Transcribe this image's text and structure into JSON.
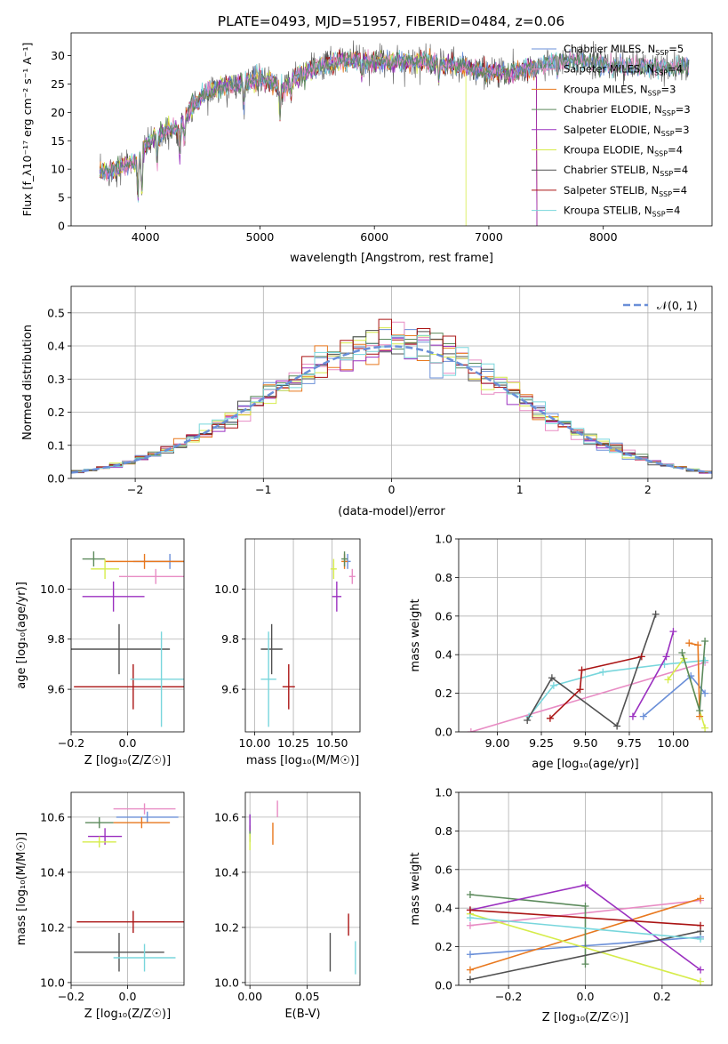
{
  "figure": {
    "title": "PLATE=0493, MJD=51957, FIBERID=0484, z=0.06"
  },
  "colors": {
    "chabrier_miles": "#6a8fd8",
    "salpeter_miles": "#e88cc4",
    "kroupa_miles": "#e8781e",
    "chabrier_elodie": "#5c8a5c",
    "salpeter_elodie": "#9b30c0",
    "kroupa_elodie": "#d6ec4a",
    "chabrier_stelib": "#505050",
    "salpeter_stelib": "#aa1414",
    "kroupa_stelib": "#78d6dc"
  },
  "chart_data": [
    {
      "id": "spectrum",
      "type": "line",
      "xlabel": "wavelength [Angstrom, rest frame]",
      "ylabel": "Flux [f_λ10⁻¹⁷ erg cm⁻² s⁻¹ A⁻¹]",
      "xlim": [
        3350,
        8950
      ],
      "ylim": [
        0,
        34
      ],
      "xticks": [
        "4000",
        "5000",
        "6000",
        "7000",
        "8000"
      ],
      "yticks": [
        "0",
        "5",
        "10",
        "15",
        "20",
        "25",
        "30"
      ],
      "legend_position": "right",
      "legend": [
        {
          "label": "Chabrier MILES, N",
          "sub": "SSP",
          "suffix": "=5",
          "color_key": "chabrier_miles"
        },
        {
          "label": "Salpeter MILES, N",
          "sub": "SSP",
          "suffix": "=4",
          "color_key": "salpeter_miles"
        },
        {
          "label": "Kroupa MILES, N",
          "sub": "SSP",
          "suffix": "=3",
          "color_key": "kroupa_miles"
        },
        {
          "label": "Chabrier ELODIE, N",
          "sub": "SSP",
          "suffix": "=3",
          "color_key": "chabrier_elodie"
        },
        {
          "label": "Salpeter ELODIE, N",
          "sub": "SSP",
          "suffix": "=3",
          "color_key": "salpeter_elodie"
        },
        {
          "label": "Kroupa ELODIE, N",
          "sub": "SSP",
          "suffix": "=4",
          "color_key": "kroupa_elodie"
        },
        {
          "label": "Chabrier STELIB, N",
          "sub": "SSP",
          "suffix": "=4",
          "color_key": "chabrier_stelib"
        },
        {
          "label": "Salpeter STELIB, N",
          "sub": "SSP",
          "suffix": "=4",
          "color_key": "salpeter_stelib"
        },
        {
          "label": "Kroupa STELIB, N",
          "sub": "SSP",
          "suffix": "=4",
          "color_key": "kroupa_stelib"
        }
      ],
      "continuum": [
        [
          3600,
          9
        ],
        [
          3700,
          10
        ],
        [
          3800,
          10.5
        ],
        [
          3900,
          11
        ],
        [
          4000,
          14
        ],
        [
          4100,
          16
        ],
        [
          4200,
          17
        ],
        [
          4300,
          17
        ],
        [
          4400,
          21
        ],
        [
          4500,
          23
        ],
        [
          4600,
          24
        ],
        [
          4700,
          24.5
        ],
        [
          4800,
          25
        ],
        [
          4900,
          25.5
        ],
        [
          5000,
          26
        ],
        [
          5100,
          25.5
        ],
        [
          5200,
          24
        ],
        [
          5300,
          26
        ],
        [
          5400,
          27
        ],
        [
          5500,
          28
        ],
        [
          5600,
          28.5
        ],
        [
          5700,
          29
        ],
        [
          5800,
          29.5
        ],
        [
          5900,
          29
        ],
        [
          6000,
          29
        ],
        [
          6200,
          29
        ],
        [
          6400,
          29
        ],
        [
          6600,
          28.5
        ],
        [
          6800,
          28
        ],
        [
          7000,
          27
        ],
        [
          7200,
          27
        ],
        [
          7400,
          28
        ],
        [
          7600,
          29
        ],
        [
          7800,
          29
        ],
        [
          8000,
          28.5
        ],
        [
          8200,
          28
        ],
        [
          8400,
          28
        ],
        [
          8600,
          28
        ],
        [
          8750,
          28
        ]
      ]
    },
    {
      "id": "residual-histogram",
      "type": "histogram",
      "xlabel": "(data-model)/error",
      "ylabel": "Normed distribution",
      "xlim": [
        -2.5,
        2.5
      ],
      "ylim": [
        0,
        0.58
      ],
      "xticks": [
        "−2",
        "−1",
        "0",
        "1",
        "2"
      ],
      "yticks": [
        "0.0",
        "0.1",
        "0.2",
        "0.3",
        "0.4",
        "0.5"
      ],
      "legend_position": "top-right",
      "legend": [
        {
          "label": "𝒩(0, 1)",
          "color_key": "chabrier_miles",
          "style": "dashed"
        }
      ],
      "curve": "normal(0,1)",
      "bin_width": 0.1
    },
    {
      "id": "age-vs-Z",
      "type": "errorbar",
      "xlabel": "Z [log₁₀(Z/Z☉)]",
      "ylabel": "age  [log₁₀(age/yr)]",
      "xlim": [
        -0.2,
        0.2
      ],
      "ylim": [
        9.43,
        10.2
      ],
      "xticks": [
        "−0.2",
        "0.0"
      ],
      "yticks": [
        "9.6",
        "9.8",
        "10.0"
      ],
      "points": [
        {
          "x": 0.15,
          "y": 10.11,
          "xerr": 0.13,
          "yerr": 0.03,
          "color_key": "chabrier_miles"
        },
        {
          "x": 0.1,
          "y": 10.05,
          "xerr": 0.13,
          "yerr": 0.03,
          "color_key": "salpeter_miles"
        },
        {
          "x": 0.06,
          "y": 10.11,
          "xerr": 0.14,
          "yerr": 0.03,
          "color_key": "kroupa_miles"
        },
        {
          "x": -0.12,
          "y": 10.12,
          "xerr": 0.04,
          "yerr": 0.03,
          "color_key": "chabrier_elodie"
        },
        {
          "x": -0.05,
          "y": 9.97,
          "xerr": 0.11,
          "yerr": 0.06,
          "color_key": "salpeter_elodie"
        },
        {
          "x": -0.08,
          "y": 10.08,
          "xerr": 0.05,
          "yerr": 0.04,
          "color_key": "kroupa_elodie"
        },
        {
          "x": -0.03,
          "y": 9.76,
          "xerr": 0.18,
          "yerr": 0.1,
          "color_key": "chabrier_stelib"
        },
        {
          "x": 0.02,
          "y": 9.61,
          "xerr": 0.21,
          "yerr": 0.09,
          "color_key": "salpeter_stelib"
        },
        {
          "x": 0.12,
          "y": 9.64,
          "xerr": 0.11,
          "yerr": 0.19,
          "color_key": "kroupa_stelib"
        }
      ]
    },
    {
      "id": "age-vs-mass",
      "type": "errorbar",
      "xlabel": "mass [log₁₀(M/M☉)]",
      "ylabel": "",
      "xlim": [
        9.94,
        10.68
      ],
      "ylim": [
        9.43,
        10.2
      ],
      "xticks": [
        "10.00",
        "10.25",
        "10.50"
      ],
      "yticks": [
        "9.6",
        "9.8",
        "10.0"
      ],
      "points": [
        {
          "x": 10.6,
          "y": 10.11,
          "xerr": 0.02,
          "yerr": 0.03,
          "color_key": "chabrier_miles"
        },
        {
          "x": 10.63,
          "y": 10.05,
          "xerr": 0.02,
          "yerr": 0.03,
          "color_key": "salpeter_miles"
        },
        {
          "x": 10.58,
          "y": 10.11,
          "xerr": 0.02,
          "yerr": 0.03,
          "color_key": "kroupa_miles"
        },
        {
          "x": 10.58,
          "y": 10.12,
          "xerr": 0.02,
          "yerr": 0.03,
          "color_key": "chabrier_elodie"
        },
        {
          "x": 10.53,
          "y": 9.97,
          "xerr": 0.03,
          "yerr": 0.06,
          "color_key": "salpeter_elodie"
        },
        {
          "x": 10.51,
          "y": 10.08,
          "xerr": 0.02,
          "yerr": 0.04,
          "color_key": "kroupa_elodie"
        },
        {
          "x": 10.11,
          "y": 9.76,
          "xerr": 0.07,
          "yerr": 0.1,
          "color_key": "chabrier_stelib"
        },
        {
          "x": 10.22,
          "y": 9.61,
          "xerr": 0.04,
          "yerr": 0.09,
          "color_key": "salpeter_stelib"
        },
        {
          "x": 10.09,
          "y": 9.64,
          "xerr": 0.05,
          "yerr": 0.19,
          "color_key": "kroupa_stelib"
        }
      ]
    },
    {
      "id": "mass-weight-vs-age",
      "type": "line",
      "xlabel": "age  [log₁₀(age/yr)]",
      "ylabel": "mass weight",
      "xlim": [
        8.78,
        10.22
      ],
      "ylim": [
        0,
        1
      ],
      "xticks": [
        "9.00",
        "9.25",
        "9.50",
        "9.75",
        "10.00"
      ],
      "yticks": [
        "0.0",
        "0.2",
        "0.4",
        "0.6",
        "0.8",
        "1.0"
      ],
      "series": [
        {
          "color_key": "salpeter_miles",
          "x": [
            8.85,
            10.18
          ],
          "y": [
            0.0,
            0.36
          ]
        },
        {
          "color_key": "kroupa_stelib",
          "x": [
            9.18,
            9.32,
            9.6,
            9.95,
            10.18
          ],
          "y": [
            0.08,
            0.24,
            0.31,
            0.35,
            0.37
          ]
        },
        {
          "color_key": "chabrier_stelib",
          "x": [
            9.17,
            9.31,
            9.68,
            9.9
          ],
          "y": [
            0.06,
            0.28,
            0.03,
            0.61
          ]
        },
        {
          "color_key": "salpeter_stelib",
          "x": [
            9.3,
            9.47,
            9.48,
            9.82
          ],
          "y": [
            0.07,
            0.22,
            0.32,
            0.39
          ]
        },
        {
          "color_key": "chabrier_miles",
          "x": [
            9.83,
            10.1,
            10.18
          ],
          "y": [
            0.08,
            0.29,
            0.2
          ]
        },
        {
          "color_key": "salpeter_elodie",
          "x": [
            9.77,
            9.96,
            10.0
          ],
          "y": [
            0.08,
            0.39,
            0.52
          ]
        },
        {
          "color_key": "kroupa_elodie",
          "x": [
            9.97,
            10.06,
            10.18
          ],
          "y": [
            0.27,
            0.38,
            0.02
          ]
        },
        {
          "color_key": "kroupa_miles",
          "x": [
            10.09,
            10.14,
            10.15
          ],
          "y": [
            0.46,
            0.45,
            0.08
          ]
        },
        {
          "color_key": "chabrier_elodie",
          "x": [
            10.05,
            10.15,
            10.18
          ],
          "y": [
            0.41,
            0.11,
            0.47
          ]
        }
      ]
    },
    {
      "id": "mass-vs-Z",
      "type": "errorbar",
      "xlabel": "Z [log₁₀(Z/Z☉)]",
      "ylabel": "mass [log₁₀(M/M☉)]",
      "xlim": [
        -0.2,
        0.2
      ],
      "ylim": [
        9.99,
        10.69
      ],
      "xticks": [
        "−0.2",
        "0.0"
      ],
      "yticks": [
        "10.0",
        "10.2",
        "10.4",
        "10.6"
      ],
      "points": [
        {
          "x": 0.07,
          "y": 10.6,
          "xerr": 0.11,
          "yerr": 0.02,
          "color_key": "chabrier_miles"
        },
        {
          "x": 0.06,
          "y": 10.63,
          "xerr": 0.11,
          "yerr": 0.02,
          "color_key": "salpeter_miles"
        },
        {
          "x": 0.05,
          "y": 10.58,
          "xerr": 0.1,
          "yerr": 0.02,
          "color_key": "kroupa_miles"
        },
        {
          "x": -0.1,
          "y": 10.58,
          "xerr": 0.05,
          "yerr": 0.02,
          "color_key": "chabrier_elodie"
        },
        {
          "x": -0.08,
          "y": 10.53,
          "xerr": 0.06,
          "yerr": 0.03,
          "color_key": "salpeter_elodie"
        },
        {
          "x": -0.1,
          "y": 10.51,
          "xerr": 0.06,
          "yerr": 0.02,
          "color_key": "kroupa_elodie"
        },
        {
          "x": -0.03,
          "y": 10.11,
          "xerr": 0.16,
          "yerr": 0.07,
          "color_key": "chabrier_stelib"
        },
        {
          "x": 0.02,
          "y": 10.22,
          "xerr": 0.2,
          "yerr": 0.04,
          "color_key": "salpeter_stelib"
        },
        {
          "x": 0.06,
          "y": 10.09,
          "xerr": 0.11,
          "yerr": 0.05,
          "color_key": "kroupa_stelib"
        }
      ]
    },
    {
      "id": "mass-vs-ebv",
      "type": "errorbar",
      "xlabel": "E(B-V)",
      "ylabel": "",
      "xlim": [
        -0.004,
        0.096
      ],
      "ylim": [
        9.99,
        10.69
      ],
      "xticks": [
        "0.00",
        "0.05"
      ],
      "yticks": [
        "10.0",
        "10.2",
        "10.4",
        "10.6"
      ],
      "points": [
        {
          "x": 0.0,
          "y": 10.57,
          "xerr": 0,
          "yerr": 0.04,
          "color_key": "chabrier_miles"
        },
        {
          "x": 0.024,
          "y": 10.63,
          "xerr": 0,
          "yerr": 0.03,
          "color_key": "salpeter_miles"
        },
        {
          "x": 0.02,
          "y": 10.54,
          "xerr": 0,
          "yerr": 0.04,
          "color_key": "kroupa_miles"
        },
        {
          "x": 0.0,
          "y": 10.54,
          "xerr": 0,
          "yerr": 0.03,
          "color_key": "chabrier_elodie"
        },
        {
          "x": 0.0,
          "y": 10.58,
          "xerr": 0,
          "yerr": 0.03,
          "color_key": "salpeter_elodie"
        },
        {
          "x": 0.0,
          "y": 10.51,
          "xerr": 0,
          "yerr": 0.03,
          "color_key": "kroupa_elodie"
        },
        {
          "x": 0.07,
          "y": 10.11,
          "xerr": 0,
          "yerr": 0.07,
          "color_key": "chabrier_stelib"
        },
        {
          "x": 0.086,
          "y": 10.21,
          "xerr": 0,
          "yerr": 0.04,
          "color_key": "salpeter_stelib"
        },
        {
          "x": 0.092,
          "y": 10.09,
          "xerr": 0,
          "yerr": 0.06,
          "color_key": "kroupa_stelib"
        }
      ]
    },
    {
      "id": "mass-weight-vs-Z",
      "type": "line",
      "xlabel": "Z [log₁₀(Z/Z☉)]",
      "ylabel": "mass weight",
      "xlim": [
        -0.33,
        0.33
      ],
      "ylim": [
        0,
        1
      ],
      "xticks": [
        "−0.2",
        "0.0",
        "0.2"
      ],
      "yticks": [
        "0.0",
        "0.2",
        "0.4",
        "0.6",
        "0.8",
        "1.0"
      ],
      "series": [
        {
          "color_key": "chabrier_miles",
          "x": [
            -0.3,
            0.3
          ],
          "y": [
            0.16,
            0.25
          ]
        },
        {
          "color_key": "salpeter_miles",
          "x": [
            -0.3,
            0.3
          ],
          "y": [
            0.31,
            0.44
          ]
        },
        {
          "color_key": "kroupa_miles",
          "x": [
            -0.3,
            0.3
          ],
          "y": [
            0.08,
            0.45
          ]
        },
        {
          "color_key": "chabrier_elodie",
          "x": [
            -0.3,
            0.0,
            0.0
          ],
          "y": [
            0.47,
            0.41,
            0.11
          ]
        },
        {
          "color_key": "salpeter_elodie",
          "x": [
            -0.3,
            0.0,
            0.3
          ],
          "y": [
            0.39,
            0.52,
            0.08
          ]
        },
        {
          "color_key": "kroupa_elodie",
          "x": [
            -0.3,
            0.3
          ],
          "y": [
            0.37,
            0.02
          ]
        },
        {
          "color_key": "chabrier_stelib",
          "x": [
            -0.3,
            0.3
          ],
          "y": [
            0.03,
            0.28
          ]
        },
        {
          "color_key": "salpeter_stelib",
          "x": [
            -0.3,
            0.3
          ],
          "y": [
            0.39,
            0.31
          ]
        },
        {
          "color_key": "kroupa_stelib",
          "x": [
            -0.3,
            0.3
          ],
          "y": [
            0.35,
            0.24
          ]
        }
      ]
    }
  ]
}
